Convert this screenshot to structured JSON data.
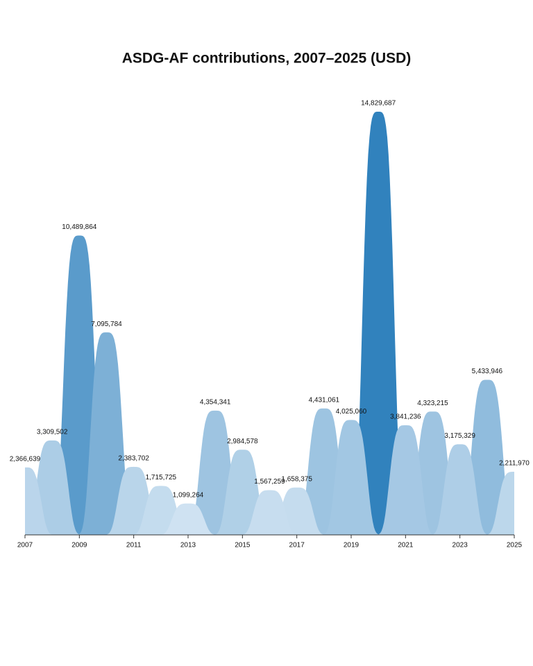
{
  "chart_data": {
    "type": "ridge-area",
    "title": "ASDG-AF contributions, 2007–2025 (USD)",
    "x": [
      2007,
      2008,
      2009,
      2010,
      2011,
      2012,
      2013,
      2014,
      2015,
      2016,
      2017,
      2018,
      2019,
      2020,
      2021,
      2022,
      2023,
      2024,
      2025
    ],
    "values": [
      2366639,
      3309502,
      10489864,
      7095784,
      2383702,
      1715725,
      1099264,
      4354341,
      2984578,
      1567259,
      1658375,
      4431061,
      4025060,
      14829687,
      3841236,
      4323215,
      3175329,
      5433946,
      2211970
    ],
    "value_labels": [
      "2,366,639",
      "3,309,502",
      "10,489,864",
      "7,095,784",
      "2,383,702",
      "1,715,725",
      "1,099,264",
      "4,354,341",
      "2,984,578",
      "1,567,259",
      "1,658,375",
      "4,431,061",
      "4,025,060",
      "14,829,687",
      "3,841,236",
      "4,323,215",
      "3,175,329",
      "5,433,946",
      "2,211,970"
    ],
    "xlim": [
      2007,
      2025
    ],
    "xticks": [
      2007,
      2009,
      2011,
      2013,
      2015,
      2017,
      2019,
      2021,
      2023,
      2025
    ],
    "color_range": [
      "#eef5fc",
      "#3182bd"
    ]
  }
}
